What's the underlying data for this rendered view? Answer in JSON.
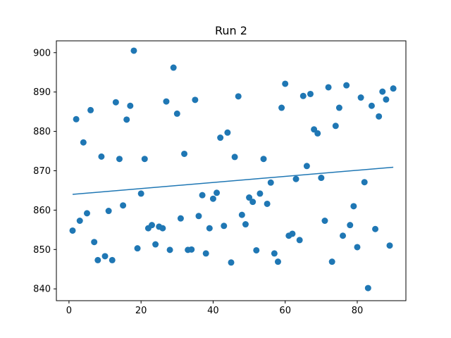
{
  "chart_data": {
    "type": "scatter",
    "title": "Run 2",
    "xlabel": "",
    "ylabel": "",
    "xlim": [
      -3.5,
      93.5
    ],
    "ylim": [
      837.0,
      903.0
    ],
    "x_ticks": [
      0,
      20,
      40,
      60,
      80
    ],
    "y_ticks": [
      840,
      850,
      860,
      870,
      880,
      890,
      900
    ],
    "grid": false,
    "colors": {
      "points": "#1f77b4",
      "trend": "#1f77b4"
    },
    "series": [
      {
        "x": [
          1,
          2,
          3,
          4,
          5,
          6,
          7,
          8,
          9,
          10,
          11,
          12,
          13,
          14,
          15,
          16,
          17,
          18,
          19,
          20,
          21,
          22,
          23,
          24,
          25,
          26,
          27,
          28,
          29,
          30,
          31,
          32,
          33,
          34,
          35,
          36,
          37,
          38,
          39,
          40,
          41,
          42,
          43,
          44,
          45,
          46,
          47,
          48,
          49,
          50,
          51,
          52,
          53,
          54,
          55,
          56,
          57,
          58,
          59,
          60,
          61,
          62,
          63,
          64,
          65,
          66,
          67,
          68,
          69,
          70,
          71,
          72,
          73,
          74,
          75,
          76,
          77,
          78,
          79,
          80,
          81,
          82,
          83,
          84,
          85,
          86,
          87,
          88,
          89,
          90
        ],
        "y": [
          854.8,
          883.1,
          857.3,
          877.2,
          859.2,
          885.4,
          851.9,
          847.3,
          873.6,
          848.3,
          859.8,
          847.3,
          887.4,
          873.0,
          861.2,
          883.0,
          886.5,
          900.5,
          850.3,
          864.2,
          873.0,
          855.4,
          856.2,
          851.3,
          855.8,
          855.4,
          887.6,
          849.9,
          896.2,
          884.5,
          857.9,
          874.3,
          849.9,
          850.0,
          888.0,
          858.5,
          863.8,
          849.0,
          855.4,
          862.9,
          864.4,
          878.4,
          856.0,
          879.7,
          846.7,
          873.5,
          888.9,
          858.8,
          856.4,
          863.2,
          862.1,
          849.8,
          864.2,
          873.0,
          861.6,
          867.0,
          849.0,
          846.9,
          886.0,
          892.1,
          853.5,
          854.0,
          867.9,
          852.4,
          889.0,
          871.2,
          889.5,
          880.5,
          879.5,
          868.2,
          857.3,
          891.2,
          846.9,
          881.4,
          886.0,
          853.5,
          891.7,
          856.2,
          861.0,
          850.6,
          888.6,
          867.1,
          840.2,
          886.5,
          855.2,
          883.8,
          890.1,
          888.1,
          851.0,
          890.9
        ]
      }
    ],
    "trend_line": {
      "x": [
        1,
        90
      ],
      "y": [
        864.0,
        870.9
      ]
    }
  }
}
